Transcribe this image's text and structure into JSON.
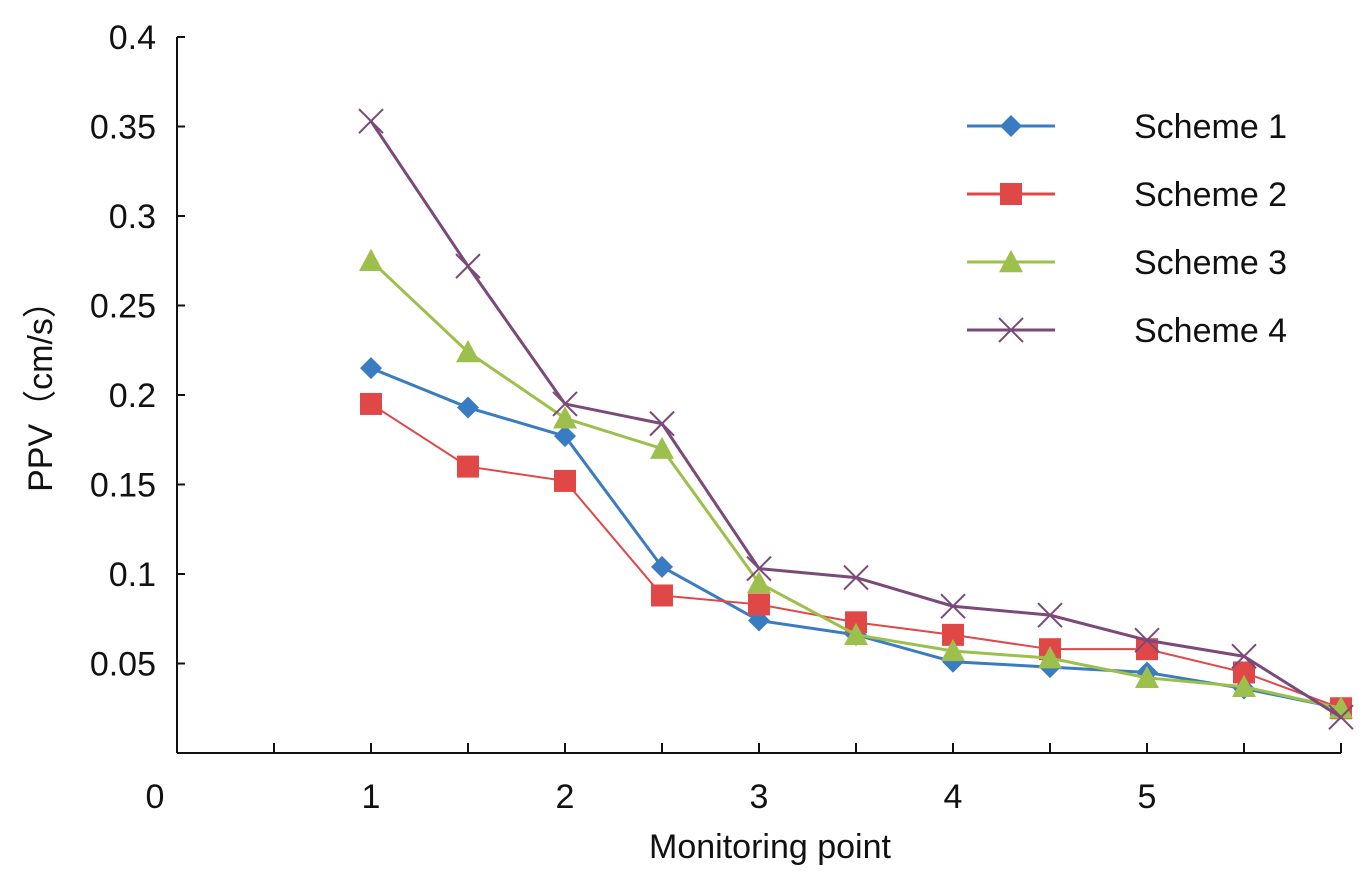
{
  "chart_data": {
    "type": "line",
    "title": "",
    "xlabel": "Monitoring point",
    "ylabel": "PPV（cm/s）",
    "xlim": [
      0,
      6
    ],
    "ylim": [
      0,
      0.4
    ],
    "x_tick_labels": [
      "0",
      "1",
      "2",
      "3",
      "4",
      "5"
    ],
    "y_tick_labels": [
      "0.05",
      "0.1",
      "0.15",
      "0.2",
      "0.25",
      "0.3",
      "0.35",
      "0.4"
    ],
    "x": [
      1,
      1.5,
      2,
      2.5,
      3,
      3.5,
      4,
      4.5,
      5,
      5.5,
      6
    ],
    "grid": false,
    "legend_position": "top-right",
    "series": [
      {
        "name": "Scheme 1",
        "color": "#3a7cc1",
        "marker": "diamond",
        "values": [
          0.215,
          0.193,
          0.177,
          0.104,
          0.074,
          0.066,
          0.051,
          0.048,
          0.045,
          0.036,
          0.025
        ]
      },
      {
        "name": "Scheme 2",
        "color": "#e04848",
        "marker": "square",
        "values": [
          0.195,
          0.16,
          0.152,
          0.088,
          0.083,
          0.073,
          0.066,
          0.058,
          0.058,
          0.045,
          0.025
        ]
      },
      {
        "name": "Scheme 3",
        "color": "#9dc04c",
        "marker": "triangle",
        "values": [
          0.275,
          0.224,
          0.187,
          0.17,
          0.095,
          0.066,
          0.057,
          0.053,
          0.042,
          0.037,
          0.025
        ]
      },
      {
        "name": "Scheme 4",
        "color": "#7b4a78",
        "marker": "cross",
        "values": [
          0.353,
          0.272,
          0.195,
          0.184,
          0.103,
          0.098,
          0.082,
          0.077,
          0.063,
          0.054,
          0.02
        ]
      }
    ]
  }
}
